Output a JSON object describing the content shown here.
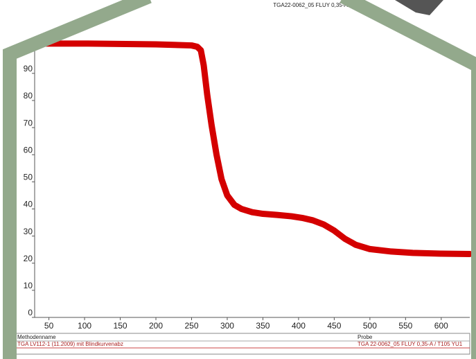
{
  "chart_data": {
    "type": "line",
    "title": "TGA22-0062_05 FLUY 0,35-A /",
    "x": [
      30,
      100,
      200,
      250,
      258,
      263,
      267,
      272,
      278,
      285,
      292,
      300,
      310,
      320,
      335,
      350,
      370,
      390,
      405,
      420,
      435,
      450,
      465,
      480,
      500,
      530,
      560,
      600,
      640
    ],
    "series": [
      {
        "name": "TGA 22-0062_05",
        "color": "#d40000",
        "values": [
          101,
          101,
          100.7,
          100.3,
          99.8,
          98.5,
          93,
          82,
          71,
          60,
          51,
          45,
          41.5,
          40,
          38.8,
          38.2,
          37.8,
          37.3,
          36.7,
          35.8,
          34.3,
          32,
          29,
          26.8,
          25.2,
          24.3,
          23.8,
          23.5,
          23.4
        ]
      }
    ],
    "xlim": [
      30,
      640
    ],
    "ylim": [
      0,
      103
    ],
    "xticks": [
      50,
      100,
      150,
      200,
      250,
      300,
      350,
      400,
      450,
      500,
      550,
      600
    ],
    "yticks": [
      0,
      10,
      20,
      30,
      40,
      50,
      60,
      70,
      80,
      90
    ]
  },
  "footer": {
    "headers": [
      "Methodenname",
      "Probe"
    ],
    "row": [
      "TGA LV112-1 (11.2009) mit Blindkurvenabz",
      "TGA 22-0062_05 FLUY 0,35-A / T105 YU1"
    ]
  }
}
